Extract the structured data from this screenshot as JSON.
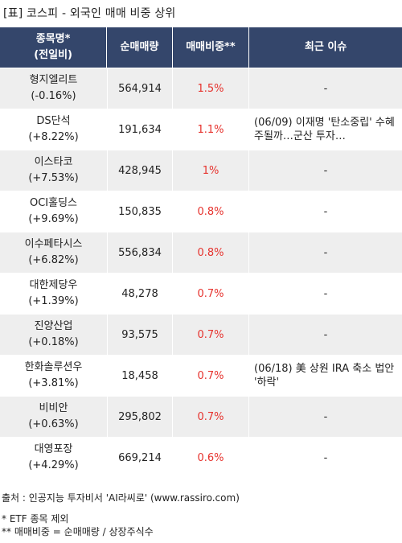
{
  "title": "[표] 코스피 - 외국인 매매 비중 상위",
  "table": {
    "headers": {
      "name_line1": "종목명*",
      "name_line2": "(전일비)",
      "volume": "순매매량",
      "ratio": "매매비중**",
      "issue": "최근 이슈"
    },
    "rows": [
      {
        "name": "형지엘리트",
        "change": "(-0.16%)",
        "volume": "564,914",
        "ratio": "1.5%",
        "issue": "-"
      },
      {
        "name": "DS단석",
        "change": "(+8.22%)",
        "volume": "191,634",
        "ratio": "1.1%",
        "issue": "(06/09) 이재명 '탄소중립' 수혜주될까…군산 투자…"
      },
      {
        "name": "이스타코",
        "change": "(+7.53%)",
        "volume": "428,945",
        "ratio": "1%",
        "issue": "-"
      },
      {
        "name": "OCI홀딩스",
        "change": "(+9.69%)",
        "volume": "150,835",
        "ratio": "0.8%",
        "issue": "-"
      },
      {
        "name": "이수페타시스",
        "change": "(+6.82%)",
        "volume": "556,834",
        "ratio": "0.8%",
        "issue": "-"
      },
      {
        "name": "대한제당우",
        "change": "(+1.39%)",
        "volume": "48,278",
        "ratio": "0.7%",
        "issue": "-"
      },
      {
        "name": "진양산업",
        "change": "(+0.18%)",
        "volume": "93,575",
        "ratio": "0.7%",
        "issue": "-"
      },
      {
        "name": "한화솔루션우",
        "change": "(+3.81%)",
        "volume": "18,458",
        "ratio": "0.7%",
        "issue": "(06/18) 美 상원 IRA 축소 법안 '하락'"
      },
      {
        "name": "비비안",
        "change": "(+0.63%)",
        "volume": "295,802",
        "ratio": "0.7%",
        "issue": "-"
      },
      {
        "name": "대영포장",
        "change": "(+4.29%)",
        "volume": "669,214",
        "ratio": "0.6%",
        "issue": "-"
      }
    ]
  },
  "footer": {
    "source": "출처 : 인공지능 투자비서 'AI라씨로' (www.rassiro.com)",
    "note1": "* ETF 종목 제외",
    "note2": "** 매매비중 = 순매매량 / 상장주식수"
  },
  "colors": {
    "header_bg": "#34466b",
    "ratio_text": "#e6322d",
    "row_alt_bg": "#eeeeee"
  }
}
